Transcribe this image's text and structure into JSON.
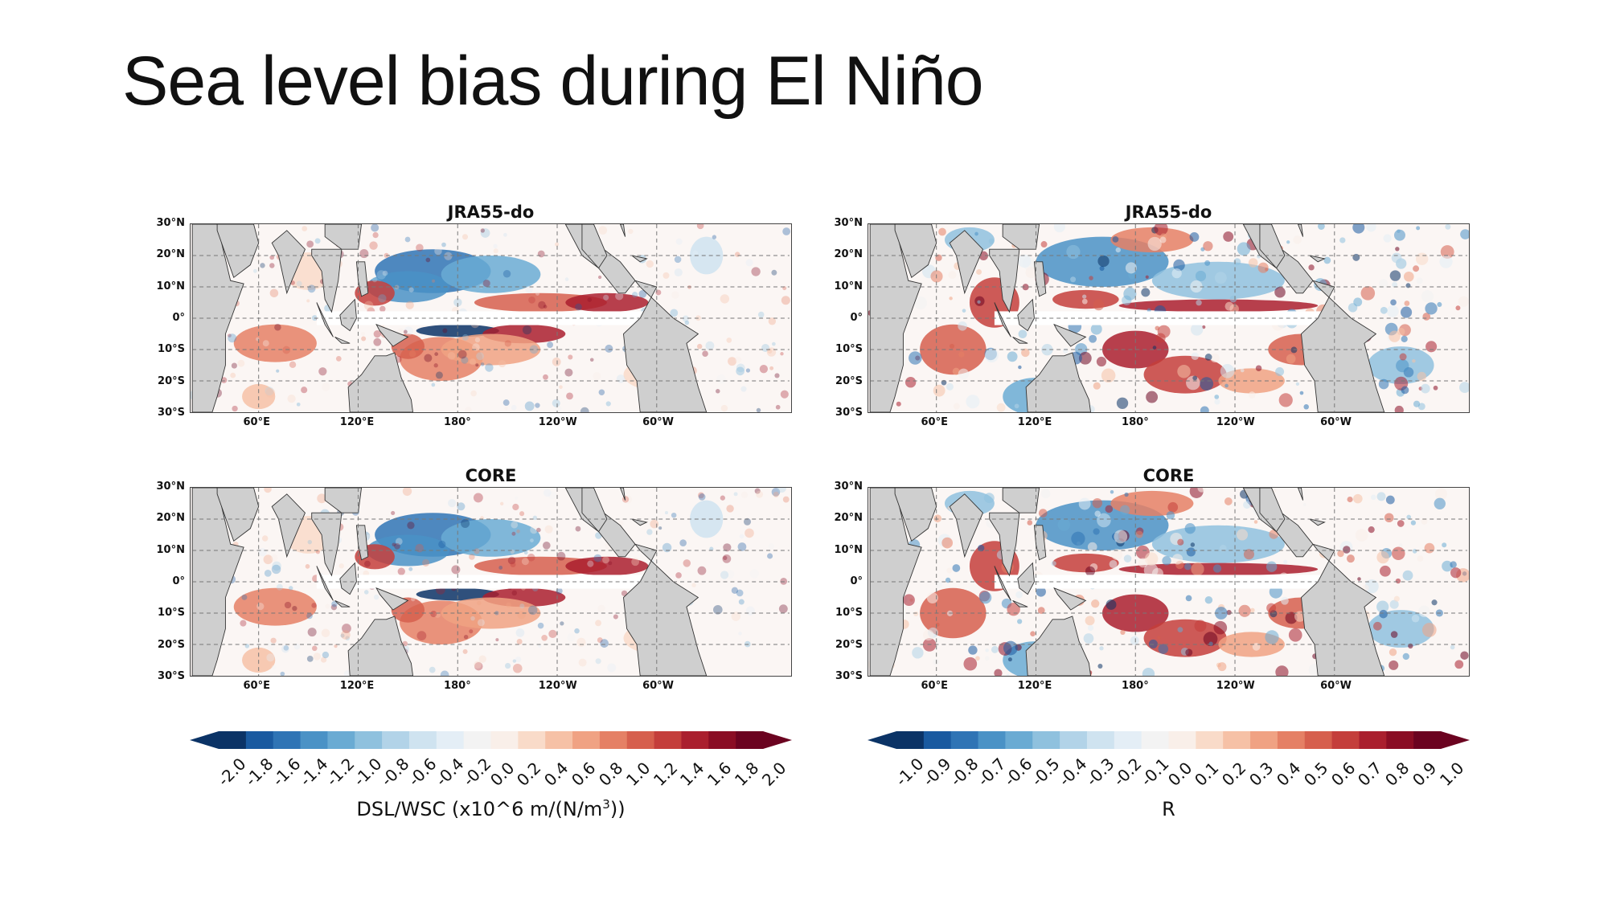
{
  "slide": {
    "title": "Sea level bias during El Niño"
  },
  "panels": [
    {
      "title": "JRA55-do",
      "style": "anomaly"
    },
    {
      "title": "JRA55-do",
      "style": "correlation"
    },
    {
      "title": "CORE",
      "style": "anomaly"
    },
    {
      "title": "CORE",
      "style": "correlation"
    }
  ],
  "lat_labels": [
    "30°N",
    "20°N",
    "10°N",
    "0°",
    "10°S",
    "20°S",
    "30°S"
  ],
  "lon_labels": [
    "60°E",
    "120°E",
    "180°",
    "120°W",
    "60°W"
  ],
  "colorbars": [
    {
      "label_prefix": "DSL/WSC (x10^6 m/(N/m",
      "label_sup": "3",
      "label_suffix": "))",
      "ticks": [
        "-2.0",
        "-1.8",
        "-1.6",
        "-1.4",
        "-1.2",
        "-1.0",
        "-0.8",
        "-0.6",
        "-0.4",
        "-0.2",
        "0.0",
        "0.2",
        "0.4",
        "0.6",
        "0.8",
        "1.0",
        "1.2",
        "1.4",
        "1.6",
        "1.8",
        "2.0"
      ]
    },
    {
      "label_prefix": "R",
      "label_sup": "",
      "label_suffix": "",
      "ticks": [
        "-1.0",
        "-0.9",
        "-0.8",
        "-0.7",
        "-0.6",
        "-0.5",
        "-0.4",
        "-0.3",
        "-0.2",
        "-0.1",
        "0.0",
        "0.1",
        "0.2",
        "0.3",
        "0.4",
        "0.5",
        "0.6",
        "0.7",
        "0.8",
        "0.9",
        "1.0"
      ]
    }
  ],
  "colors": {
    "land": "#cfcfcf",
    "coast": "#333333",
    "grid": "#777777",
    "cmap": [
      "#0b3366",
      "#1a5aa0",
      "#2f74b5",
      "#4a92c6",
      "#6aabd3",
      "#8fc1de",
      "#b2d3e8",
      "#cfe3f0",
      "#e4eef6",
      "#f3f3f3",
      "#f9efe9",
      "#f9dbc9",
      "#f6c1a6",
      "#f0a283",
      "#e58065",
      "#d65f4d",
      "#c43e3b",
      "#aa1f2e",
      "#8a0d24",
      "#6b0320"
    ]
  }
}
